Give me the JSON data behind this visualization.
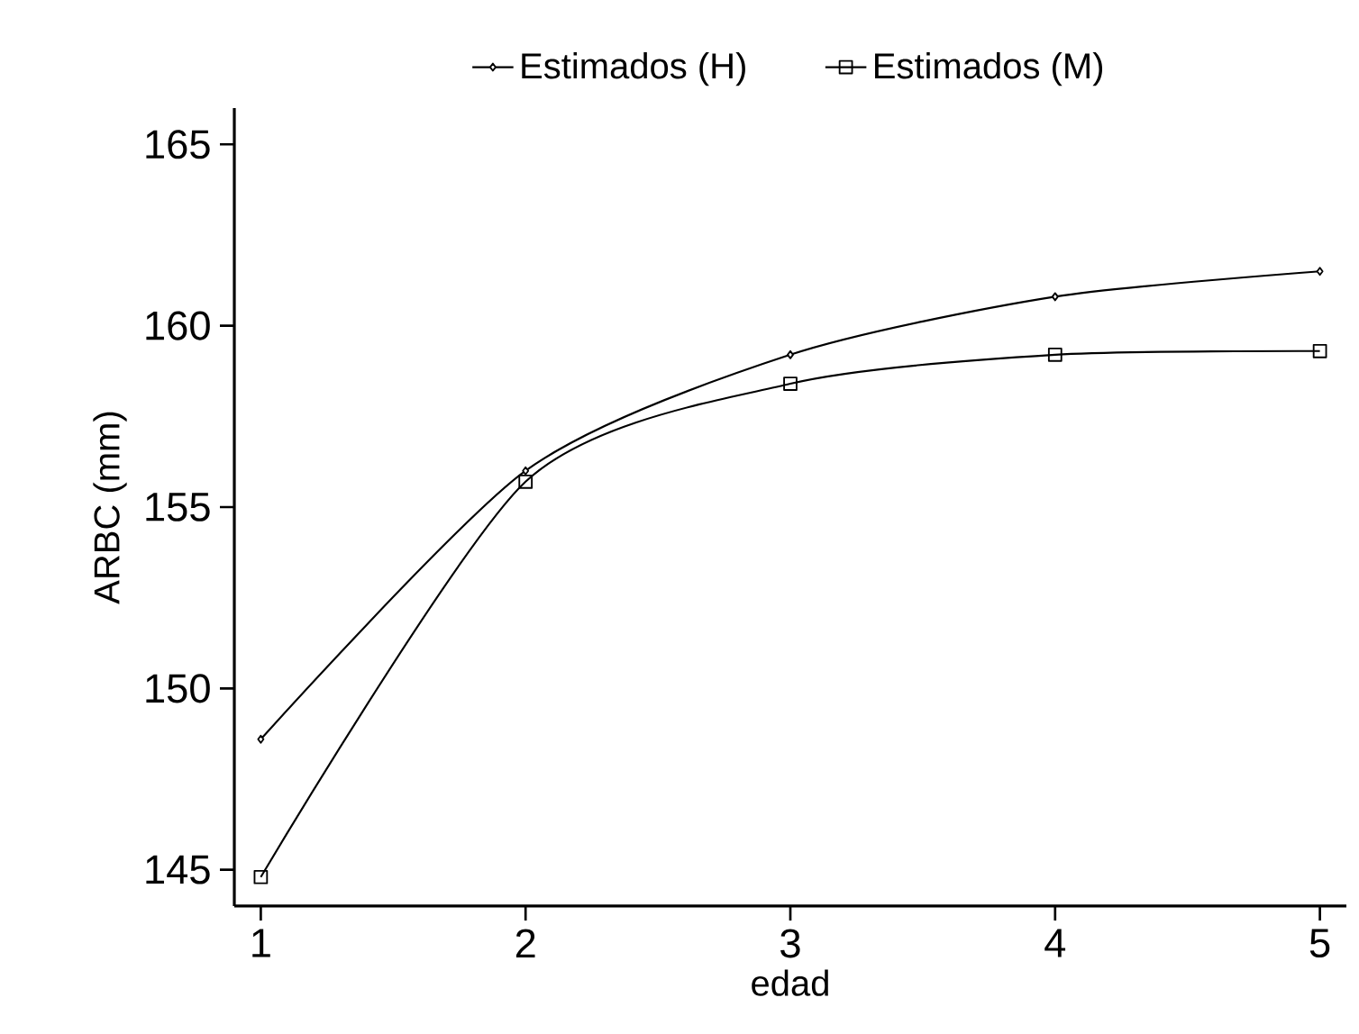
{
  "chart_data": {
    "type": "line",
    "xlabel": "edad",
    "ylabel": "ARBC (mm)",
    "x": [
      1,
      2,
      3,
      4,
      5
    ],
    "series": [
      {
        "name": "Estimados (H)",
        "color": "#000000",
        "marker": "diamond",
        "values": [
          148.6,
          156.0,
          159.2,
          160.8,
          161.5
        ]
      },
      {
        "name": "Estimados (M)",
        "color": "#000000",
        "marker": "square",
        "values": [
          144.8,
          155.7,
          158.4,
          159.2,
          159.3
        ]
      }
    ],
    "xlim": [
      0.9,
      5.1
    ],
    "ylim": [
      144,
      166
    ],
    "xticks": [
      1,
      2,
      3,
      4,
      5
    ],
    "yticks": [
      145,
      150,
      155,
      160,
      165
    ],
    "grid": false,
    "legend": "top",
    "line_style": "solid"
  }
}
